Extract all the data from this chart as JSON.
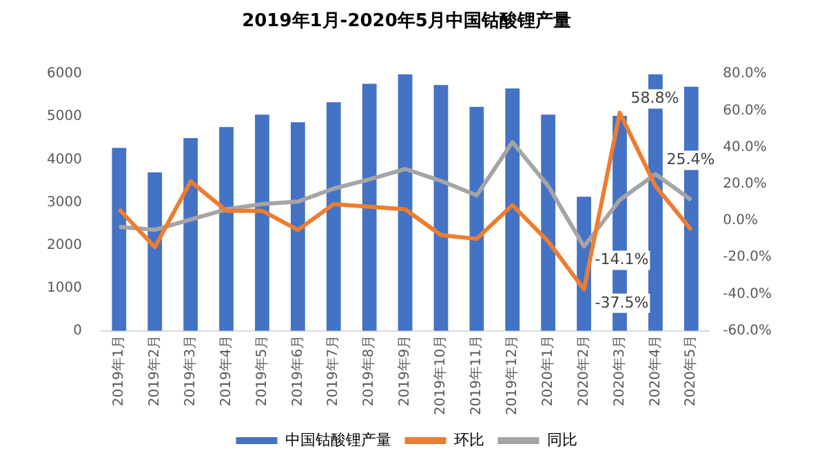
{
  "chart_data": {
    "type": "bar",
    "title": "2019年1月-2020年5月中国钴酸锂产量",
    "categories": [
      "2019年1月",
      "2019年2月",
      "2019年3月",
      "2019年4月",
      "2019年5月",
      "2019年6月",
      "2019年7月",
      "2019年8月",
      "2019年9月",
      "2019年10月",
      "2019年11月",
      "2019年12月",
      "2020年1月",
      "2020年2月",
      "2020年3月",
      "2020年4月",
      "2020年5月"
    ],
    "series": [
      {
        "name": "中国钴酸锂产量",
        "color": "#4472c4",
        "values": [
          4270,
          3700,
          4500,
          4760,
          5050,
          4870,
          5340,
          5770,
          5990,
          5740,
          5230,
          5660,
          5050,
          3130,
          5020,
          5990,
          5700
        ]
      },
      {
        "name": "环比",
        "type": "line",
        "axis": "y2",
        "color": "#ed7d31",
        "values": [
          6.2,
          -14.4,
          21.4,
          5.4,
          5.4,
          -5,
          9,
          7.6,
          6.2,
          -7.9,
          -9.9,
          8.5,
          -11.3,
          -37.5,
          58.8,
          18.9,
          -5
        ],
        "value_labels": [
          null,
          null,
          null,
          null,
          null,
          null,
          null,
          null,
          null,
          null,
          null,
          null,
          null,
          "-37.5%",
          "58.8%",
          null,
          null
        ]
      },
      {
        "name": "同比",
        "type": "line",
        "axis": "y2",
        "color": "#a5a5a5",
        "values": [
          -3.4,
          -5,
          0.6,
          6.2,
          9,
          10.4,
          17.5,
          22.5,
          28.2,
          21.7,
          13.8,
          42.8,
          18.9,
          -14.1,
          11.3,
          25.4,
          11.3
        ],
        "value_labels": [
          null,
          null,
          null,
          null,
          null,
          null,
          null,
          null,
          null,
          null,
          null,
          null,
          null,
          "-14.1%",
          null,
          "25.4%",
          null
        ]
      }
    ],
    "ylim": [
      0,
      6000
    ],
    "yticks": [
      0,
      1000,
      2000,
      3000,
      4000,
      5000,
      6000
    ],
    "y2lim": [
      -60,
      80
    ],
    "y2ticks": [
      {
        "value": -60,
        "label": "-60.0%"
      },
      {
        "value": -40,
        "label": "-40.0%"
      },
      {
        "value": -20,
        "label": "-20.0%"
      },
      {
        "value": 0,
        "label": "0.0%"
      },
      {
        "value": 20,
        "label": "20.0%"
      },
      {
        "value": 40,
        "label": "40.0%"
      },
      {
        "value": 60,
        "label": "60.0%"
      },
      {
        "value": 80,
        "label": "80.0%"
      }
    ],
    "grid": false,
    "legend": "bottom",
    "marker": "none"
  }
}
